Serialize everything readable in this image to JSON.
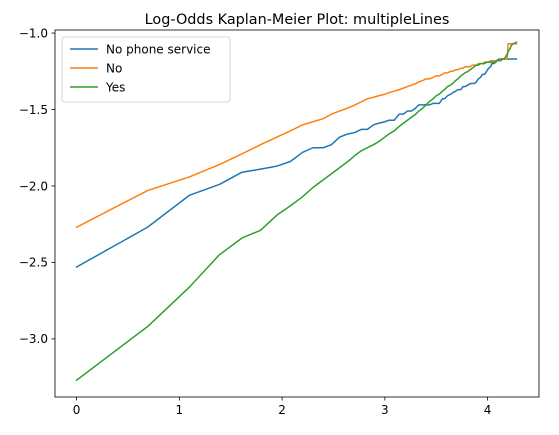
{
  "chart_data": {
    "type": "line",
    "title": "Log-Odds Kaplan-Meier Plot: multipleLines",
    "xlabel": "",
    "ylabel": "",
    "xlim": [
      -0.21,
      4.5
    ],
    "ylim": [
      -3.38,
      -0.98
    ],
    "xticks": [
      0,
      1,
      2,
      3,
      4
    ],
    "yticks": [
      -3.0,
      -2.5,
      -2.0,
      -1.5,
      -1.0
    ],
    "xtick_labels": [
      "0",
      "1",
      "2",
      "3",
      "4"
    ],
    "ytick_labels": [
      "−3.0",
      "−2.5",
      "−2.0",
      "−1.5",
      "−1.0"
    ],
    "grid": false,
    "legend_position": "upper left",
    "series": [
      {
        "name": "No phone service",
        "color": "#1f77b4",
        "x": [
          0,
          0.69,
          1.1,
          1.39,
          1.61,
          1.79,
          1.95,
          2.08,
          2.2,
          2.3,
          2.4,
          2.48,
          2.56,
          2.64,
          2.71,
          2.77,
          2.83,
          2.89,
          2.94,
          3.0,
          3.04,
          3.09,
          3.14,
          3.18,
          3.22,
          3.26,
          3.3,
          3.33,
          3.37,
          3.4,
          3.43,
          3.47,
          3.5,
          3.53,
          3.56,
          3.58,
          3.61,
          3.64,
          3.66,
          3.69,
          3.71,
          3.74,
          3.76,
          3.78,
          3.81,
          3.83,
          3.85,
          3.87,
          3.89,
          3.91,
          3.93,
          3.95,
          3.97,
          3.99,
          4.01,
          4.03,
          4.04,
          4.06,
          4.08,
          4.09,
          4.11,
          4.13,
          4.14,
          4.16,
          4.17,
          4.19,
          4.2,
          4.22,
          4.23,
          4.25,
          4.28
        ],
        "y": [
          -2.53,
          -2.27,
          -2.06,
          -1.99,
          -1.91,
          -1.89,
          -1.87,
          -1.84,
          -1.78,
          -1.75,
          -1.75,
          -1.73,
          -1.68,
          -1.66,
          -1.65,
          -1.63,
          -1.63,
          -1.6,
          -1.59,
          -1.58,
          -1.57,
          -1.57,
          -1.53,
          -1.53,
          -1.51,
          -1.51,
          -1.49,
          -1.47,
          -1.47,
          -1.47,
          -1.47,
          -1.46,
          -1.46,
          -1.46,
          -1.43,
          -1.43,
          -1.41,
          -1.4,
          -1.39,
          -1.38,
          -1.37,
          -1.37,
          -1.35,
          -1.35,
          -1.34,
          -1.33,
          -1.33,
          -1.33,
          -1.32,
          -1.3,
          -1.29,
          -1.27,
          -1.27,
          -1.25,
          -1.23,
          -1.22,
          -1.2,
          -1.2,
          -1.19,
          -1.18,
          -1.17,
          -1.17,
          -1.17,
          -1.17,
          -1.17,
          -1.17,
          -1.17,
          -1.17,
          -1.17,
          -1.17,
          -1.17
        ]
      },
      {
        "name": "No",
        "color": "#ff7f0e",
        "x": [
          0,
          0.69,
          1.1,
          1.39,
          1.61,
          1.79,
          1.95,
          2.08,
          2.2,
          2.3,
          2.4,
          2.48,
          2.56,
          2.64,
          2.71,
          2.77,
          2.83,
          2.89,
          2.94,
          3.0,
          3.04,
          3.09,
          3.14,
          3.18,
          3.22,
          3.26,
          3.3,
          3.33,
          3.37,
          3.4,
          3.43,
          3.47,
          3.5,
          3.53,
          3.56,
          3.58,
          3.61,
          3.64,
          3.66,
          3.69,
          3.71,
          3.74,
          3.76,
          3.78,
          3.81,
          3.83,
          3.85,
          3.87,
          3.89,
          3.91,
          3.93,
          3.95,
          3.97,
          3.99,
          4.01,
          4.03,
          4.04,
          4.06,
          4.08,
          4.09,
          4.11,
          4.13,
          4.14,
          4.16,
          4.17,
          4.19,
          4.2,
          4.22,
          4.23,
          4.25,
          4.28
        ],
        "y": [
          -2.27,
          -2.03,
          -1.94,
          -1.86,
          -1.79,
          -1.73,
          -1.68,
          -1.64,
          -1.6,
          -1.58,
          -1.56,
          -1.53,
          -1.51,
          -1.49,
          -1.47,
          -1.45,
          -1.43,
          -1.42,
          -1.41,
          -1.4,
          -1.39,
          -1.38,
          -1.37,
          -1.36,
          -1.35,
          -1.34,
          -1.33,
          -1.32,
          -1.31,
          -1.3,
          -1.3,
          -1.29,
          -1.28,
          -1.28,
          -1.27,
          -1.26,
          -1.26,
          -1.25,
          -1.25,
          -1.24,
          -1.24,
          -1.23,
          -1.23,
          -1.22,
          -1.22,
          -1.22,
          -1.21,
          -1.21,
          -1.21,
          -1.2,
          -1.2,
          -1.2,
          -1.19,
          -1.19,
          -1.19,
          -1.18,
          -1.18,
          -1.18,
          -1.18,
          -1.18,
          -1.18,
          -1.17,
          -1.17,
          -1.17,
          -1.17,
          -1.17,
          -1.07,
          -1.07,
          -1.07,
          -1.07,
          -1.07
        ]
      },
      {
        "name": "Yes",
        "color": "#2ca02c",
        "x": [
          0,
          0.69,
          1.1,
          1.39,
          1.61,
          1.79,
          1.95,
          2.08,
          2.2,
          2.3,
          2.4,
          2.48,
          2.56,
          2.64,
          2.71,
          2.77,
          2.83,
          2.89,
          2.94,
          3.0,
          3.04,
          3.09,
          3.14,
          3.18,
          3.22,
          3.26,
          3.3,
          3.33,
          3.37,
          3.4,
          3.43,
          3.47,
          3.5,
          3.53,
          3.56,
          3.58,
          3.61,
          3.64,
          3.66,
          3.69,
          3.71,
          3.74,
          3.76,
          3.78,
          3.81,
          3.83,
          3.85,
          3.87,
          3.89,
          3.91,
          3.93,
          3.95,
          3.97,
          3.99,
          4.01,
          4.03,
          4.04,
          4.06,
          4.08,
          4.09,
          4.11,
          4.13,
          4.14,
          4.16,
          4.17,
          4.19,
          4.2,
          4.22,
          4.23,
          4.25,
          4.28
        ],
        "y": [
          -3.27,
          -2.92,
          -2.66,
          -2.45,
          -2.34,
          -2.29,
          -2.19,
          -2.13,
          -2.07,
          -2.01,
          -1.96,
          -1.92,
          -1.88,
          -1.84,
          -1.8,
          -1.77,
          -1.75,
          -1.73,
          -1.71,
          -1.68,
          -1.66,
          -1.64,
          -1.61,
          -1.59,
          -1.57,
          -1.55,
          -1.53,
          -1.51,
          -1.49,
          -1.47,
          -1.45,
          -1.43,
          -1.41,
          -1.4,
          -1.38,
          -1.37,
          -1.35,
          -1.34,
          -1.33,
          -1.31,
          -1.3,
          -1.28,
          -1.27,
          -1.26,
          -1.25,
          -1.24,
          -1.23,
          -1.22,
          -1.21,
          -1.21,
          -1.2,
          -1.2,
          -1.2,
          -1.19,
          -1.19,
          -1.19,
          -1.19,
          -1.19,
          -1.19,
          -1.18,
          -1.18,
          -1.18,
          -1.17,
          -1.17,
          -1.16,
          -1.14,
          -1.12,
          -1.1,
          -1.08,
          -1.07,
          -1.06
        ]
      }
    ]
  }
}
